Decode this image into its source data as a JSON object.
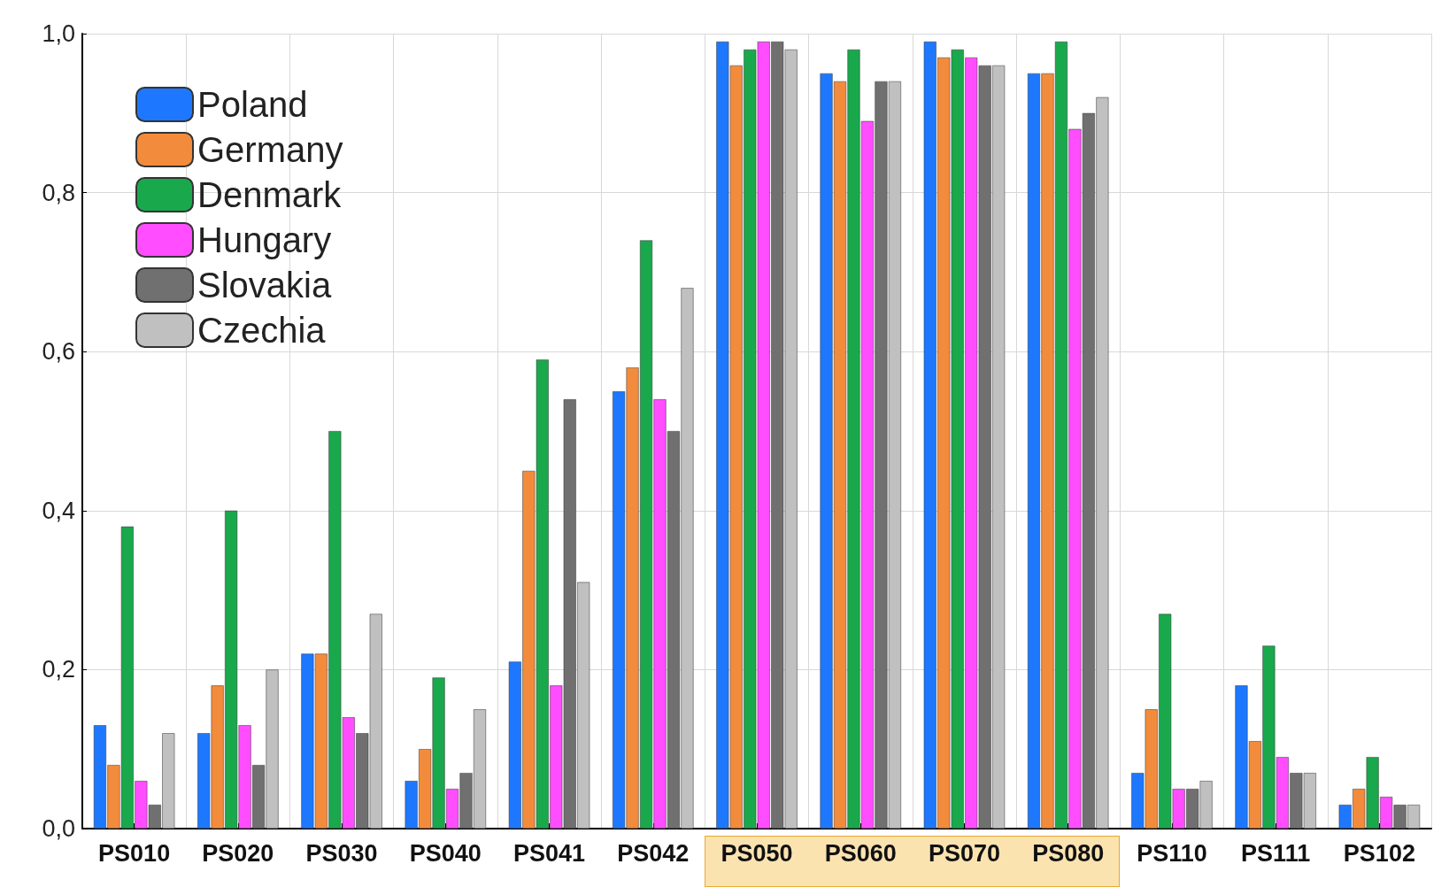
{
  "chart_data": {
    "type": "bar",
    "categories": [
      "PS010",
      "PS020",
      "PS030",
      "PS040",
      "PS041",
      "PS042",
      "PS050",
      "PS060",
      "PS070",
      "PS080",
      "PS110",
      "PS111",
      "PS102"
    ],
    "series": [
      {
        "name": "Poland",
        "color": "#1e78ff",
        "values": [
          0.13,
          0.12,
          0.22,
          0.06,
          0.21,
          0.55,
          0.99,
          0.95,
          0.99,
          0.95,
          0.07,
          0.18,
          0.03
        ]
      },
      {
        "name": "Germany",
        "color": "#f28c3c",
        "values": [
          0.08,
          0.18,
          0.22,
          0.1,
          0.45,
          0.58,
          0.96,
          0.94,
          0.97,
          0.95,
          0.15,
          0.11,
          0.05
        ]
      },
      {
        "name": "Denmark",
        "color": "#1aa84c",
        "values": [
          0.38,
          0.4,
          0.5,
          0.19,
          0.59,
          0.74,
          0.98,
          0.98,
          0.98,
          0.99,
          0.27,
          0.23,
          0.09
        ]
      },
      {
        "name": "Hungary",
        "color": "#ff4dff",
        "values": [
          0.06,
          0.13,
          0.14,
          0.05,
          0.18,
          0.54,
          0.99,
          0.89,
          0.97,
          0.88,
          0.05,
          0.09,
          0.04
        ]
      },
      {
        "name": "Slovakia",
        "color": "#707070",
        "values": [
          0.03,
          0.08,
          0.12,
          0.07,
          0.54,
          0.5,
          0.99,
          0.94,
          0.96,
          0.9,
          0.05,
          0.07,
          0.03
        ]
      },
      {
        "name": "Czechia",
        "color": "#c0c0c0",
        "values": [
          0.12,
          0.2,
          0.27,
          0.15,
          0.31,
          0.68,
          0.98,
          0.94,
          0.96,
          0.92,
          0.06,
          0.07,
          0.03
        ]
      }
    ],
    "ylim": [
      0,
      1
    ],
    "yticks": [
      {
        "value": 0,
        "label": "0,0"
      },
      {
        "value": 0.2,
        "label": "0,2"
      },
      {
        "value": 0.4,
        "label": "0,4"
      },
      {
        "value": 0.6,
        "label": "0,6"
      },
      {
        "value": 0.8,
        "label": "0,8"
      },
      {
        "value": 1,
        "label": "1,0"
      }
    ],
    "grid": true,
    "legend": "top left"
  }
}
